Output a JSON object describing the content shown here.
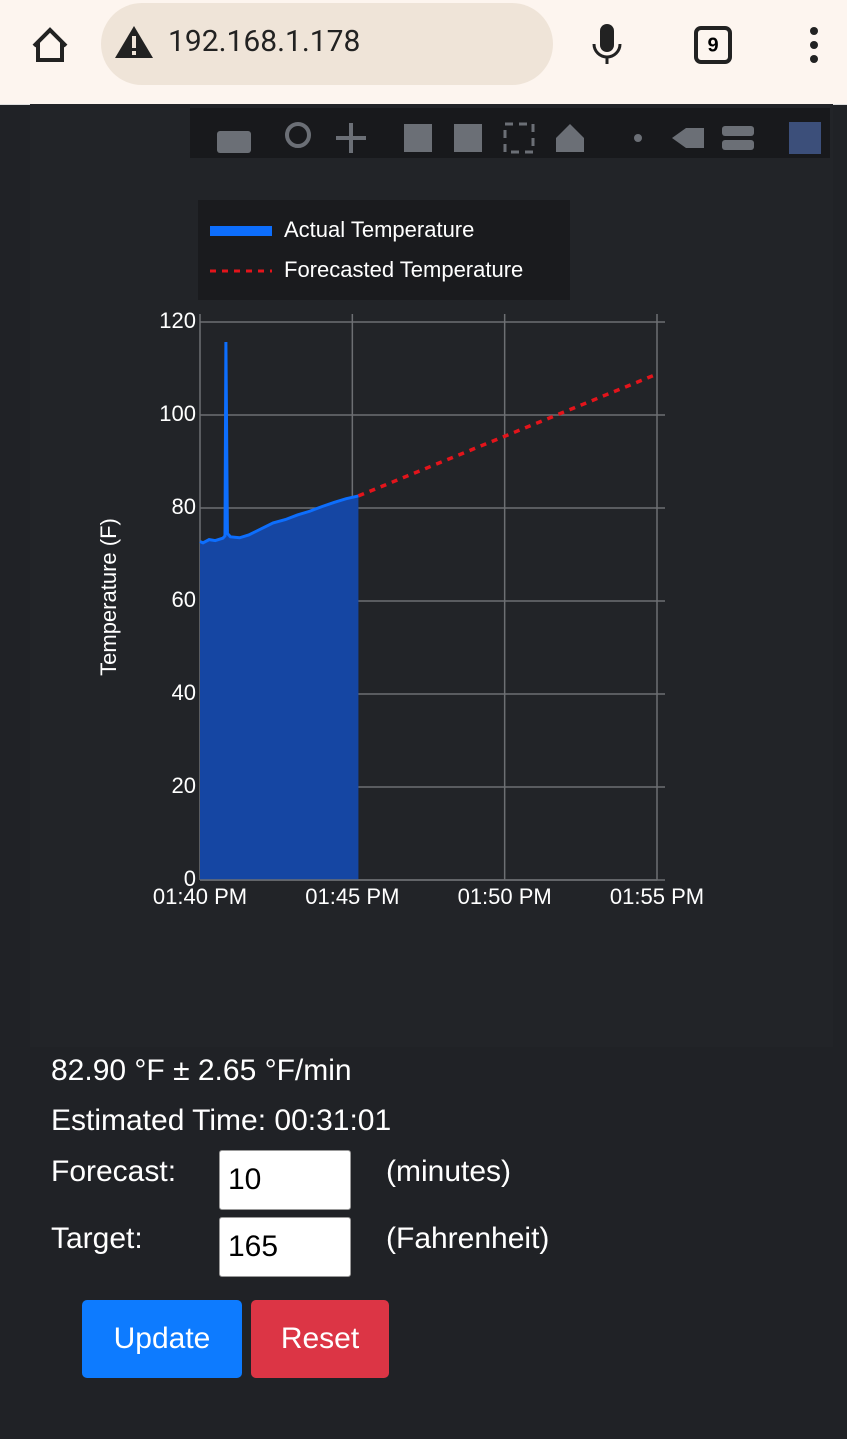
{
  "browser": {
    "url": "192.168.1.178",
    "tab_count": "9"
  },
  "chart_data": {
    "type": "line",
    "legend": "top",
    "ylabel": "Temperature (F)",
    "xlim": [
      820,
      835
    ],
    "xticks": [
      {
        "value": 820,
        "label": "01:40 PM"
      },
      {
        "value": 825,
        "label": "01:45 PM"
      },
      {
        "value": 830,
        "label": "01:50 PM"
      },
      {
        "value": 835,
        "label": "01:55 PM"
      }
    ],
    "ylim": [
      0,
      120
    ],
    "yticks": [
      0,
      20,
      40,
      60,
      80,
      100,
      120
    ],
    "grid": true,
    "series": [
      {
        "name": "Actual Temperature",
        "color": "#0d6efd",
        "fill": "#1546a3",
        "x": [
          820.0,
          820.1,
          820.3,
          820.5,
          820.75,
          820.82,
          820.85,
          820.9,
          821.0,
          821.3,
          821.6,
          822.0,
          822.4,
          822.8,
          823.2,
          823.6,
          824.0,
          824.4,
          824.8,
          825.2
        ],
        "values": [
          72.8,
          72.5,
          73.2,
          73.0,
          73.5,
          74,
          115.7,
          74.5,
          73.8,
          73.6,
          74.2,
          75.5,
          76.8,
          77.5,
          78.5,
          79.3,
          80.3,
          81.2,
          82.0,
          82.6
        ]
      },
      {
        "name": "Forecasted Temperature",
        "color": "#e3141b",
        "dash": true,
        "x": [
          825.2,
          835
        ],
        "values": [
          82.6,
          108.8
        ]
      }
    ]
  },
  "status": {
    "rate": "82.90 °F ± 2.65 °F/min",
    "estimate": "Estimated Time: 00:31:01"
  },
  "form": {
    "forecast_label": "Forecast:",
    "forecast_value": "10",
    "forecast_unit": "(minutes)",
    "target_label": "Target:",
    "target_value": "165",
    "target_unit": "(Fahrenheit)",
    "update": "Update",
    "reset": "Reset"
  }
}
